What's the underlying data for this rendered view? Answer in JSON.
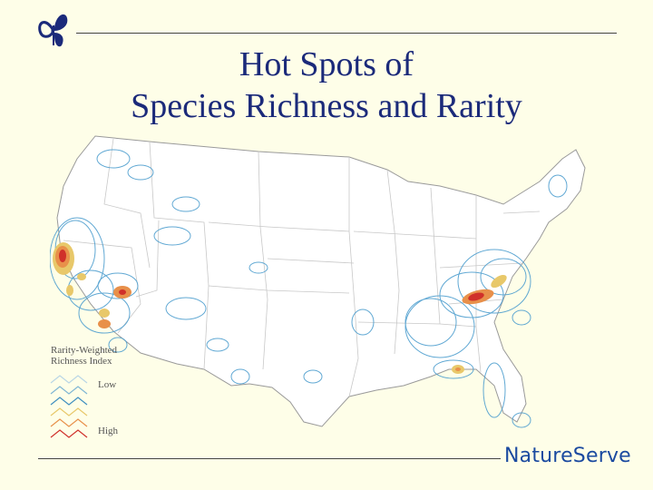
{
  "slide": {
    "title_line1": "Hot Spots of",
    "title_line2": "Species Richness and Rarity",
    "brand": "NatureServe"
  },
  "legend": {
    "title_line1": "Rarity-Weighted",
    "title_line2": "Richness Index",
    "low_label": "Low",
    "high_label": "High",
    "scale_colors": [
      "#b9d6e6",
      "#7fb6d4",
      "#3f8fc0",
      "#e8c86a",
      "#e8904a",
      "#d0302a"
    ]
  },
  "map": {
    "subject": "contiguous-united-states",
    "state_border_color": "#c8c8c8",
    "contour_color": "#4f9fcf",
    "hotspot_colors": [
      "#e8c86a",
      "#e8904a",
      "#d0302a"
    ]
  },
  "colors": {
    "background": "#FEFEE8",
    "title": "#1b2a7a",
    "brand": "#1b4aa0"
  }
}
